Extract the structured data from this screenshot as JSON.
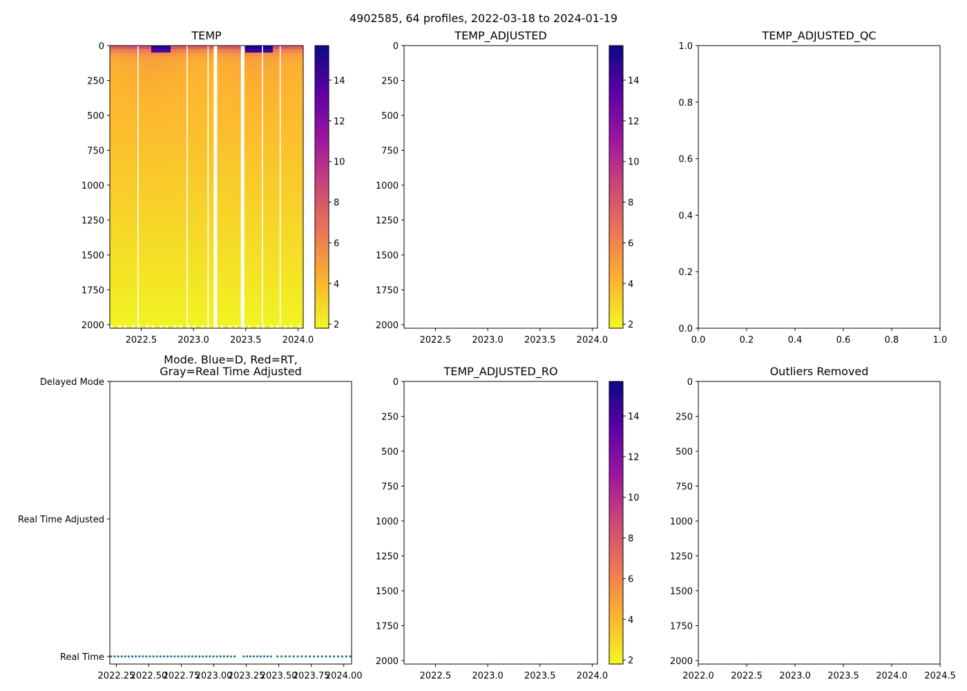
{
  "figure": {
    "suptitle": "4902585, 64 profiles, 2022-03-18 to 2024-01-19"
  },
  "colormap": {
    "name": "plasma_r",
    "stops": [
      "#f0f921",
      "#fdb42f",
      "#ed7953",
      "#cc4778",
      "#9c179e",
      "#5c01a6",
      "#0d0887"
    ]
  },
  "chart_data": [
    {
      "id": "temp",
      "type": "heatmap",
      "title": "TEMP",
      "xlim": [
        2022.2,
        2024.05
      ],
      "ylim": [
        2025,
        0
      ],
      "xticks": [
        "2022.5",
        "2023.0",
        "2023.5",
        "2024.0"
      ],
      "yticks": [
        "0",
        "250",
        "500",
        "750",
        "1000",
        "1250",
        "1500",
        "1750",
        "2000"
      ],
      "colorbar": {
        "min": 1.8,
        "max": 15.7,
        "ticks": [
          "2",
          "4",
          "6",
          "8",
          "10",
          "12",
          "14"
        ]
      },
      "value_profile": {
        "depth": [
          0,
          20,
          50,
          100,
          200,
          400,
          700,
          1000,
          1500,
          2000
        ],
        "temp": [
          9.5,
          7.0,
          5.5,
          4.6,
          4.3,
          4.0,
          3.7,
          3.3,
          2.7,
          2.0
        ]
      },
      "surface_warm_periods": [
        {
          "from": 2022.6,
          "to": 2022.78,
          "surface": 15.0,
          "depth": 40
        },
        {
          "from": 2023.5,
          "to": 2023.75,
          "surface": 15.5,
          "depth": 50
        }
      ],
      "gaps": [
        2022.47,
        2022.94,
        2023.14,
        2023.21,
        2023.47,
        2023.66,
        2023.83
      ],
      "profile_bottom_depth": 1985
    },
    {
      "id": "temp_adjusted",
      "type": "heatmap",
      "title": "TEMP_ADJUSTED",
      "xlim": [
        2022.2,
        2024.05
      ],
      "ylim": [
        2025,
        0
      ],
      "xticks": [
        "2022.5",
        "2023.0",
        "2023.5",
        "2024.0"
      ],
      "yticks": [
        "0",
        "250",
        "500",
        "750",
        "1000",
        "1250",
        "1500",
        "1750",
        "2000"
      ],
      "colorbar": {
        "min": 1.8,
        "max": 15.7,
        "ticks": [
          "2",
          "4",
          "6",
          "8",
          "10",
          "12",
          "14"
        ]
      },
      "values": []
    },
    {
      "id": "temp_adjusted_qc",
      "type": "scatter",
      "title": "TEMP_ADJUSTED_QC",
      "xlim": [
        0,
        1
      ],
      "ylim": [
        0,
        1
      ],
      "xticks": [
        "0.0",
        "0.2",
        "0.4",
        "0.6",
        "0.8",
        "1.0"
      ],
      "yticks": [
        "0.0",
        "0.2",
        "0.4",
        "0.6",
        "0.8",
        "1.0"
      ],
      "values": []
    },
    {
      "id": "mode",
      "type": "scatter",
      "title_lines": [
        "Mode. Blue=D, Red=RT,",
        "Gray=Real Time Adjusted"
      ],
      "xlim": [
        2022.2,
        2024.06
      ],
      "xticks": [
        "2022.25",
        "2022.50",
        "2022.75",
        "2023.00",
        "2023.25",
        "2023.50",
        "2023.75",
        "2024.00"
      ],
      "ycategories": [
        "Real Time",
        "Real Time Adjusted",
        "Delayed Mode"
      ],
      "point_color": "#1f7f8f",
      "points": {
        "mode": "Real Time",
        "segments": [
          {
            "from": 2022.21,
            "to": 2023.16,
            "n": 36
          },
          {
            "from": 2023.23,
            "to": 2023.44,
            "n": 9
          },
          {
            "from": 2023.49,
            "to": 2024.05,
            "n": 19
          }
        ]
      }
    },
    {
      "id": "temp_adjusted_ro",
      "type": "heatmap",
      "title": "TEMP_ADJUSTED_RO",
      "xlim": [
        2022.2,
        2024.05
      ],
      "ylim": [
        2025,
        0
      ],
      "xticks": [
        "2022.5",
        "2023.0",
        "2023.5",
        "2024.0"
      ],
      "yticks": [
        "0",
        "250",
        "500",
        "750",
        "1000",
        "1250",
        "1500",
        "1750",
        "2000"
      ],
      "colorbar": {
        "min": 1.8,
        "max": 15.7,
        "ticks": [
          "2",
          "4",
          "6",
          "8",
          "10",
          "12",
          "14"
        ]
      },
      "values": []
    },
    {
      "id": "outliers",
      "type": "scatter",
      "title": "Outliers Removed",
      "xlim": [
        2022.0,
        2024.5
      ],
      "ylim": [
        2025,
        0
      ],
      "xticks": [
        "2022.0",
        "2022.5",
        "2023.0",
        "2023.5",
        "2024.0",
        "2024.5"
      ],
      "yticks": [
        "0",
        "250",
        "500",
        "750",
        "1000",
        "1250",
        "1500",
        "1750",
        "2000"
      ],
      "values": []
    }
  ]
}
